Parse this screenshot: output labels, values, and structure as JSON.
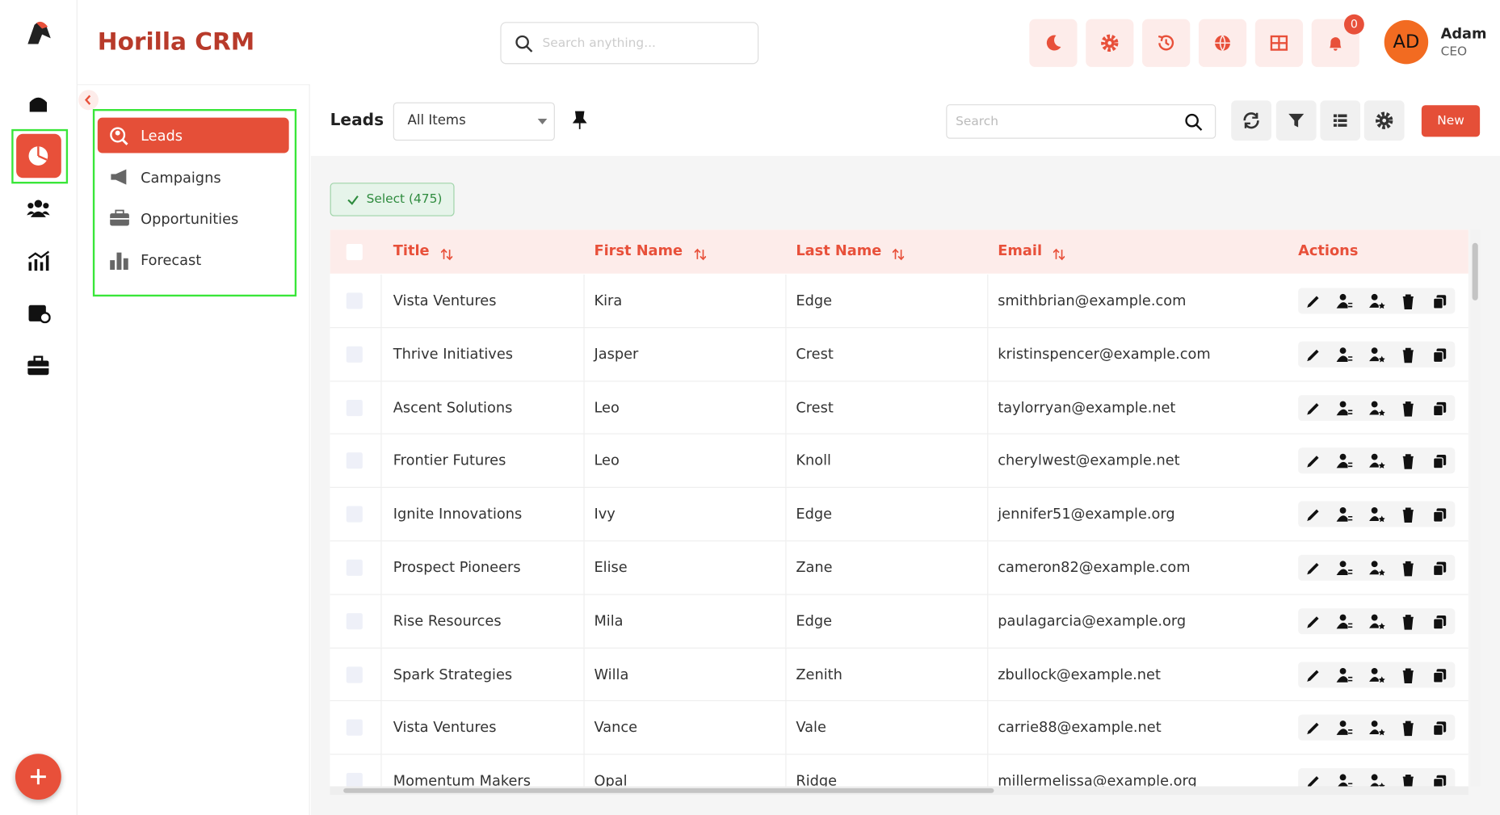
{
  "header": {
    "title": "Horilla CRM",
    "search_placeholder": "Search anything...",
    "notification_count": "0",
    "avatar": "AD",
    "user_name": "Adam",
    "user_role": "CEO"
  },
  "submenu": [
    "Leads",
    "Campaigns",
    "Opportunities",
    "Forecast"
  ],
  "toolbar": {
    "title": "Leads",
    "view": "All Items",
    "search_placeholder": "Search",
    "new_button": "New"
  },
  "select_button": "Select (475)",
  "table": {
    "columns": [
      "Title",
      "First Name",
      "Last Name",
      "Email",
      "Actions"
    ],
    "rows": [
      [
        "Vista Ventures",
        "Kira",
        "Edge",
        "smithbrian@example.com"
      ],
      [
        "Thrive Initiatives",
        "Jasper",
        "Crest",
        "kristinspencer@example.com"
      ],
      [
        "Ascent Solutions",
        "Leo",
        "Crest",
        "taylorryan@example.net"
      ],
      [
        "Frontier Futures",
        "Leo",
        "Knoll",
        "cherylwest@example.net"
      ],
      [
        "Ignite Innovations",
        "Ivy",
        "Edge",
        "jennifer51@example.org"
      ],
      [
        "Prospect Pioneers",
        "Elise",
        "Zane",
        "cameron82@example.com"
      ],
      [
        "Rise Resources",
        "Mila",
        "Edge",
        "paulagarcia@example.org"
      ],
      [
        "Spark Strategies",
        "Willa",
        "Zenith",
        "zbullock@example.net"
      ],
      [
        "Vista Ventures",
        "Vance",
        "Vale",
        "carrie88@example.net"
      ],
      [
        "Momentum Makers",
        "Opal",
        "Ridge",
        "millermelissa@example.org"
      ]
    ]
  }
}
